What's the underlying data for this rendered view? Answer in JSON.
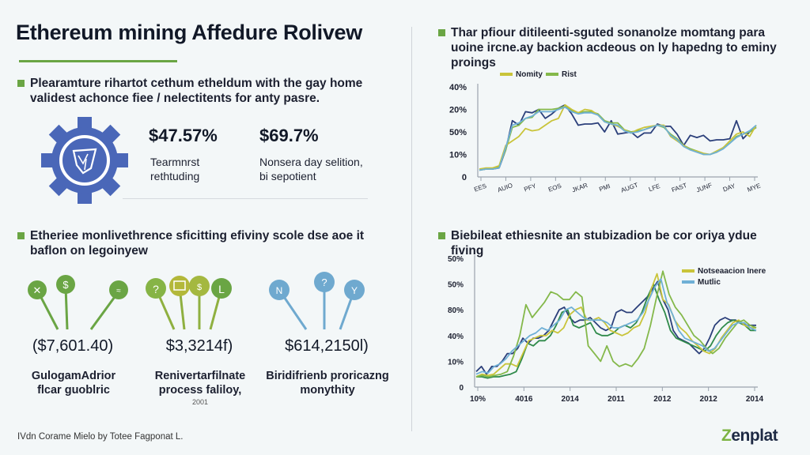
{
  "header": {
    "title": "Ethereum mining Affedure Rolivew"
  },
  "left": {
    "intro": "Plearamture rihartot cethum etheldum with the gay home validest achonce fiee / nelectitents for anty pasre.",
    "stats": [
      {
        "value": "$47.57%",
        "label_line1": "Tearmnrst",
        "label_line2": "rethtuding"
      },
      {
        "value": "$69.7%",
        "label_line1": "Nonsera day selition,",
        "label_line2": "bi sepotient"
      }
    ],
    "section2": "Etheriee monlivethrence sficitting efiviny scole dse aoe it baflon on legoinyew",
    "groups": [
      {
        "amount": "($7,601.40)",
        "label_line1": "GulogamAdrior",
        "label_line2": "flcar guoblric",
        "note": ""
      },
      {
        "amount": "$3,3214f)",
        "label_line1": "Renivertarfilnate",
        "label_line2": "process faliloy,",
        "note": "2001"
      },
      {
        "amount": "$614,2150l)",
        "label_line1": "Biridifrienb proricazng",
        "label_line2": "monythity",
        "note": ""
      }
    ],
    "footer": "IVdn Corame Mielo by Totee Fagponat L."
  },
  "right": {
    "section1": "Thar pfiour ditileenti-sguted sonanolze momtang para uoine ircne.ay backion acdeous on ly hapedng to eminy proings",
    "section2": "Biebileat ethiesnite an stubizadion be cor oriya ydue fiving"
  },
  "logo": {
    "prefix": "Z",
    "rest": "enplat"
  },
  "colors": {
    "accent_green": "#6aa544",
    "gear_blue": "#4a67b8",
    "navy": "#2b3f7a",
    "olive": "#c9c43a",
    "lime": "#84b84a",
    "light_blue": "#6fb0d6",
    "dark_green": "#2f8a4a"
  },
  "chart_data": [
    {
      "type": "line",
      "title": "",
      "legend": [
        "Nomity",
        "Rist"
      ],
      "legend_position": "top-left",
      "ytick_labels": [
        "0",
        "10%",
        "50%",
        "20%",
        "40%"
      ],
      "xtick_labels": [
        "EES",
        "AUIO",
        "PFY",
        "EOS",
        "JKAR",
        "PMI",
        "AUGT",
        "LFE",
        "FAST",
        "JUNF",
        "DAY",
        "MYE"
      ],
      "ylim": [
        0,
        4
      ],
      "grid": false,
      "series": [
        {
          "name": "Navy",
          "color": "#2b3f7a",
          "values": [
            0.3,
            0.35,
            0.35,
            0.4,
            1.2,
            2.5,
            2.3,
            2.9,
            2.85,
            3.0,
            2.6,
            2.8,
            3.05,
            3.2,
            2.8,
            2.3,
            2.35,
            2.35,
            2.4,
            2.0,
            2.5,
            1.9,
            1.95,
            2.0,
            1.75,
            1.95,
            1.95,
            2.35,
            2.25,
            2.25,
            1.9,
            1.4,
            1.85,
            1.75,
            1.85,
            1.6,
            1.65,
            1.65,
            1.7,
            2.5,
            1.7,
            2.0,
            2.2
          ]
        },
        {
          "name": "Rist",
          "color": "#84b84a",
          "values": [
            0.3,
            0.35,
            0.35,
            0.45,
            1.2,
            2.2,
            2.3,
            2.6,
            2.65,
            3.0,
            3.0,
            3.0,
            3.05,
            3.15,
            2.95,
            2.85,
            2.9,
            2.9,
            2.8,
            2.5,
            2.4,
            2.4,
            2.1,
            2.0,
            2.05,
            2.1,
            2.2,
            2.3,
            2.2,
            1.9,
            1.7,
            1.4,
            1.25,
            1.15,
            1.0,
            1.0,
            1.1,
            1.3,
            1.5,
            1.8,
            1.9,
            2.0,
            2.2
          ]
        },
        {
          "name": "Nomity",
          "color": "#c9c43a",
          "values": [
            0.35,
            0.4,
            0.4,
            0.5,
            1.4,
            1.6,
            1.8,
            2.15,
            2.05,
            2.1,
            2.3,
            2.5,
            2.6,
            3.2,
            3.0,
            2.85,
            3.0,
            2.95,
            2.75,
            2.45,
            2.35,
            2.25,
            2.1,
            1.95,
            2.1,
            2.2,
            2.25,
            2.3,
            2.3,
            1.8,
            1.6,
            1.4,
            1.2,
            1.15,
            1.05,
            1.0,
            1.15,
            1.3,
            1.6,
            1.9,
            2.0,
            1.8,
            2.3
          ]
        },
        {
          "name": "Light blue",
          "color": "#6fb0d6",
          "values": [
            0.3,
            0.35,
            0.35,
            0.4,
            1.3,
            2.3,
            2.4,
            2.6,
            2.7,
            2.9,
            2.9,
            2.9,
            3.0,
            3.1,
            2.9,
            2.8,
            2.85,
            2.85,
            2.75,
            2.45,
            2.35,
            2.3,
            2.05,
            1.95,
            2.0,
            2.1,
            2.2,
            2.3,
            2.25,
            1.85,
            1.65,
            1.35,
            1.2,
            1.1,
            1.0,
            1.0,
            1.1,
            1.25,
            1.5,
            1.75,
            1.9,
            2.05,
            2.3
          ]
        }
      ]
    },
    {
      "type": "line",
      "title": "",
      "legend": [
        "Notseaacion Inere",
        "Mutlic"
      ],
      "legend_position": "top-right",
      "ytick_labels": [
        "0",
        "10%",
        "40%",
        "80%",
        "50%",
        "50%"
      ],
      "xtick_labels": [
        "10%",
        "4016",
        "2014",
        "2011",
        "2012",
        "2012",
        "2014"
      ],
      "ylim": [
        0,
        5
      ],
      "grid": false,
      "series": [
        {
          "name": "Navy",
          "color": "#2b3f7a",
          "values": [
            0.6,
            0.8,
            0.5,
            0.8,
            0.8,
            1.0,
            1.3,
            1.3,
            1.5,
            1.9,
            1.7,
            1.9,
            1.9,
            2.0,
            2.2,
            2.6,
            3.0,
            3.1,
            2.7,
            2.5,
            2.6,
            2.6,
            2.7,
            2.5,
            2.3,
            2.2,
            2.3,
            2.9,
            3.0,
            2.9,
            2.9,
            3.1,
            3.3,
            3.5,
            3.8,
            4.1,
            3.4,
            3.0,
            2.2,
            1.9,
            1.8,
            1.7,
            1.5,
            1.3,
            1.5,
            1.9,
            2.4,
            2.6,
            2.7,
            2.6,
            2.6,
            2.5,
            2.4,
            2.4,
            2.4
          ]
        },
        {
          "name": "Dark green",
          "color": "#2f8a4a",
          "values": [
            0.4,
            0.4,
            0.35,
            0.4,
            0.4,
            0.45,
            0.5,
            0.6,
            1.1,
            1.7,
            1.6,
            1.8,
            1.8,
            2.0,
            2.4,
            2.9,
            3.0,
            2.4,
            2.3,
            2.4,
            2.5,
            2.1,
            2.0,
            2.0,
            2.1,
            2.3,
            2.4,
            2.3,
            2.5,
            2.9,
            3.5,
            4.0,
            3.4,
            2.9,
            2.2,
            1.9,
            1.8,
            1.7,
            1.6,
            1.5,
            1.4,
            1.6,
            2.0,
            2.3,
            2.5,
            2.6,
            2.5,
            2.4,
            2.2,
            2.2
          ]
        },
        {
          "name": "Notseaacion Inere",
          "color": "#c9c43a",
          "values": [
            0.4,
            0.5,
            0.45,
            0.5,
            0.7,
            0.9,
            0.9,
            0.8,
            1.3,
            1.8,
            1.9,
            2.0,
            2.0,
            2.2,
            2.1,
            2.3,
            2.8,
            3.0,
            3.1,
            2.6,
            2.6,
            2.7,
            2.5,
            2.2,
            2.1,
            2.0,
            2.1,
            2.3,
            2.4,
            2.9,
            3.8,
            4.4,
            3.4,
            3.2,
            2.6,
            2.3,
            2.1,
            1.8,
            1.6,
            1.4,
            1.3,
            1.5,
            1.9,
            2.2,
            2.5,
            2.6,
            2.4,
            2.3,
            2.3
          ]
        },
        {
          "name": "Lime",
          "color": "#84b84a",
          "values": [
            0.4,
            0.45,
            0.4,
            0.45,
            0.5,
            0.6,
            1.2,
            2.0,
            3.2,
            2.7,
            3.0,
            3.3,
            3.7,
            3.6,
            3.4,
            3.4,
            3.7,
            3.5,
            1.6,
            1.3,
            1.0,
            1.6,
            1.0,
            0.8,
            0.9,
            0.8,
            1.1,
            1.5,
            2.4,
            3.5,
            4.5,
            3.6,
            3.1,
            2.8,
            2.4,
            2.0,
            1.8,
            1.5,
            1.3,
            1.5,
            1.9,
            2.2,
            2.5,
            2.6,
            2.4,
            2.3
          ]
        },
        {
          "name": "Mutlic",
          "color": "#6fb0d6",
          "values": [
            0.5,
            0.6,
            0.55,
            0.8,
            0.9,
            1.1,
            1.4,
            1.6,
            1.8,
            2.0,
            2.1,
            2.3,
            2.2,
            2.4,
            2.6,
            3.0,
            3.1,
            2.9,
            2.7,
            2.6,
            2.6,
            2.6,
            2.5,
            2.3,
            2.3,
            2.4,
            2.5,
            2.6,
            2.9,
            3.4,
            3.9,
            4.2,
            3.3,
            2.8,
            2.2,
            1.9,
            1.8,
            1.7,
            1.6,
            1.4,
            1.5,
            1.8,
            2.1,
            2.4,
            2.5,
            2.5,
            2.3,
            2.2
          ]
        }
      ]
    }
  ]
}
